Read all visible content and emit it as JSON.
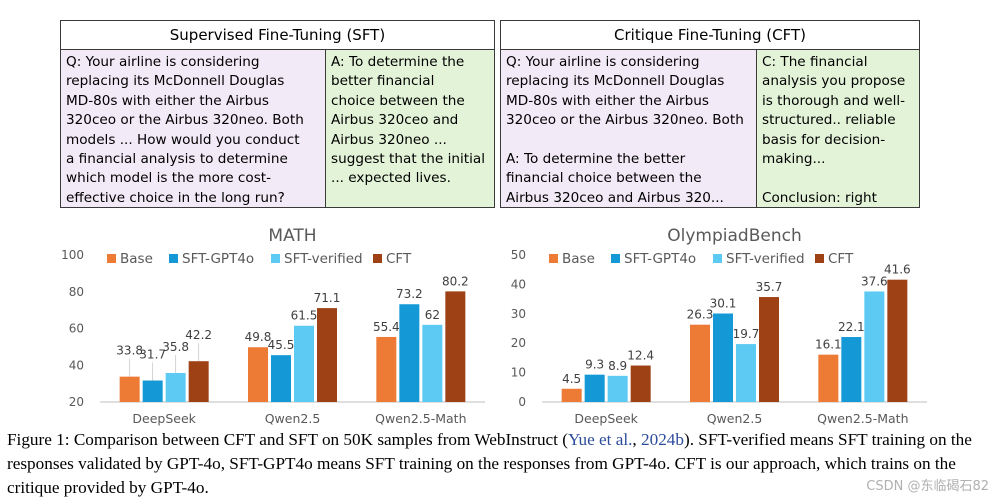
{
  "sft_panel": {
    "title": "Supervised Fine-Tuning (SFT)",
    "question": [
      "Q: Your airline is considering",
      "replacing its McDonnell Douglas",
      "MD-80s with either the Airbus",
      "320ceo or the Airbus 320neo. Both",
      "models ...  How would you conduct",
      "a financial analysis to determine",
      "which model is the more cost-",
      "effective choice in the long run?"
    ],
    "answer": [
      "A: To determine the",
      "better financial",
      "choice between the",
      "Airbus 320ceo and",
      "Airbus 320neo ...",
      "suggest that the initial",
      "... expected lives."
    ]
  },
  "cft_panel": {
    "title": "Critique Fine-Tuning (CFT)",
    "question": [
      "Q: Your airline is considering",
      "replacing its McDonnell Douglas",
      "MD-80s with either the Airbus",
      "320ceo or the Airbus 320neo. Both",
      "",
      "A: To determine the better",
      "financial choice between the",
      "Airbus 320ceo and Airbus 320..."
    ],
    "critique": [
      "C: The financial",
      "analysis you propose",
      "is thorough and well-",
      "structured.. reliable",
      "basis for decision-",
      "making...",
      "",
      "Conclusion: right"
    ]
  },
  "chart_data": [
    {
      "type": "bar",
      "title": "MATH",
      "categories": [
        "DeepSeek",
        "Qwen2.5",
        "Qwen2.5-Math"
      ],
      "series": [
        {
          "name": "Base",
          "color": "#ee7b35",
          "values": [
            33.8,
            49.8,
            55.4
          ]
        },
        {
          "name": "SFT-GPT4o",
          "color": "#1499d6",
          "values": [
            31.7,
            45.5,
            73.2
          ]
        },
        {
          "name": "SFT-verified",
          "color": "#5ccaf2",
          "values": [
            35.8,
            61.5,
            62
          ]
        },
        {
          "name": "CFT",
          "color": "#9e4115",
          "values": [
            42.2,
            71.1,
            80.2
          ]
        }
      ],
      "ylim": [
        20,
        100
      ],
      "yticks": [
        20,
        40,
        60,
        80,
        100
      ],
      "legend": "top"
    },
    {
      "type": "bar",
      "title": "OlympiadBench",
      "categories": [
        "DeepSeek",
        "Qwen2.5",
        "Qwen2.5-Math"
      ],
      "series": [
        {
          "name": "Base",
          "color": "#ee7b35",
          "values": [
            4.5,
            26.3,
            16.1
          ]
        },
        {
          "name": "SFT-GPT4o",
          "color": "#1499d6",
          "values": [
            9.3,
            30.1,
            22.1
          ]
        },
        {
          "name": "SFT-verified",
          "color": "#5ccaf2",
          "values": [
            8.9,
            19.7,
            37.6
          ]
        },
        {
          "name": "CFT",
          "color": "#9e4115",
          "values": [
            12.4,
            35.7,
            41.6
          ]
        }
      ],
      "ylim": [
        0,
        50
      ],
      "yticks": [
        0,
        10,
        20,
        30,
        40,
        50
      ],
      "legend": "top"
    }
  ],
  "caption": {
    "part1": "Figure 1: Comparison between CFT and SFT on 50K samples from WebInstruct (",
    "cite_author": "Yue et al.",
    "cite_sep": ", ",
    "cite_year": "2024b",
    "part2": "). SFT-verified means SFT training on the responses validated by GPT-4o, SFT-GPT4o means SFT training on the responses from GPT-4o. CFT is our approach, which trains on the critique provided by GPT-4o."
  },
  "watermark": "CSDN @东临碣石82"
}
